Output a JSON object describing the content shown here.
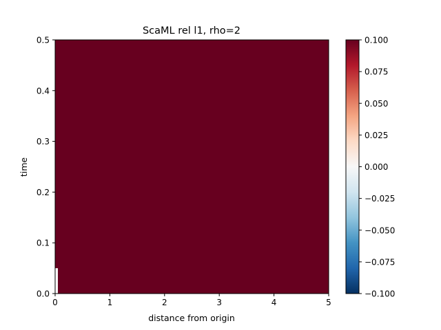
{
  "chart_data": {
    "type": "heatmap",
    "title": "ScaML rel l1, rho=2",
    "xlabel": "distance from origin",
    "ylabel": "time",
    "xlim": [
      0,
      5
    ],
    "ylim": [
      0,
      0.5
    ],
    "x_ticks": [
      0,
      1,
      2,
      3,
      4,
      5
    ],
    "x_tick_labels": [
      "0",
      "1",
      "2",
      "3",
      "4",
      "5"
    ],
    "y_ticks": [
      0.0,
      0.1,
      0.2,
      0.3,
      0.4,
      0.5
    ],
    "y_tick_labels": [
      "0.0",
      "0.1",
      "0.2",
      "0.3",
      "0.4",
      "0.5"
    ],
    "colormap": "RdBu_r",
    "colorbar": {
      "vmin": -0.1,
      "vmax": 0.1,
      "ticks": [
        0.1,
        0.075,
        0.05,
        0.025,
        0.0,
        -0.025,
        -0.05,
        -0.075,
        -0.1
      ],
      "tick_labels": [
        "0.100",
        "0.075",
        "0.050",
        "0.025",
        "0.000",
        "−0.025",
        "−0.050",
        "−0.075",
        "−0.100"
      ],
      "stops": [
        "#053061",
        "#2166ac",
        "#4393c3",
        "#92c5de",
        "#d1e5f0",
        "#f7f7f7",
        "#fddbc7",
        "#f4a582",
        "#d6604d",
        "#b2182b",
        "#67001f"
      ]
    },
    "fill_value": 0.1,
    "fill_color": "#67001f",
    "blank_region": {
      "x": [
        0,
        0.05
      ],
      "y": [
        0,
        0.05
      ]
    },
    "grid": false
  }
}
